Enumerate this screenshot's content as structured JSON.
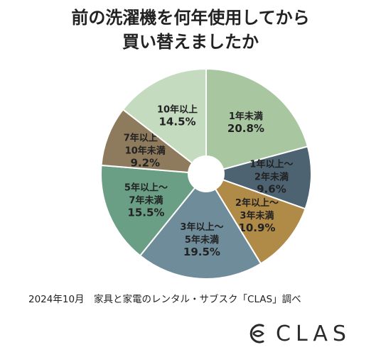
{
  "title_lines": [
    "前の洗濯機を何年使用してから",
    "買い替えましたか"
  ],
  "chart_data": {
    "type": "pie",
    "title": "前の洗濯機を何年使用してから買い替えましたか",
    "donut": true,
    "slices": [
      {
        "label_lines": [
          "1年未満"
        ],
        "value": 20.8,
        "value_label": "20.8%",
        "color": "#a8c6a0"
      },
      {
        "label_lines": [
          "1年以上～",
          "2年未満"
        ],
        "value": 9.6,
        "value_label": "9.6%",
        "color": "#4d6371"
      },
      {
        "label_lines": [
          "2年以上～",
          "3年未満"
        ],
        "value": 10.9,
        "value_label": "10.9%",
        "color": "#b08a47"
      },
      {
        "label_lines": [
          "3年以上～",
          "5年未満"
        ],
        "value": 19.5,
        "value_label": "19.5%",
        "color": "#6f8c9b"
      },
      {
        "label_lines": [
          "5年以上～",
          "7年未満"
        ],
        "value": 15.5,
        "value_label": "15.5%",
        "color": "#6a9f86"
      },
      {
        "label_lines": [
          "7年以上～",
          "10年未満"
        ],
        "value": 9.2,
        "value_label": "9.2%",
        "color": "#8e7a5c"
      },
      {
        "label_lines": [
          "10年以上"
        ],
        "value": 14.5,
        "value_label": "14.5%",
        "color": "#c4dbbf"
      }
    ]
  },
  "footnote": "2024年10月　家具と家電のレンタル・サブスク「CLAS」調べ",
  "brand": {
    "name": "CLAS",
    "logo_icon": "clas-logo-icon"
  }
}
